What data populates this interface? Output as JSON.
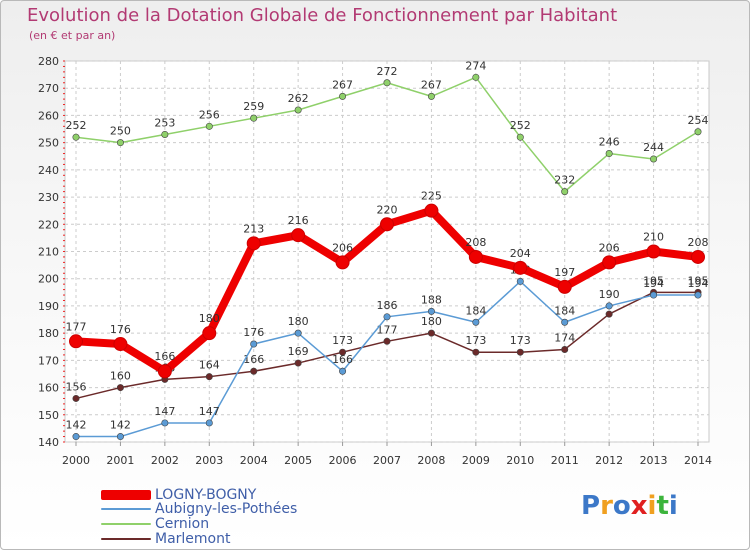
{
  "chart_data": {
    "type": "line",
    "title": "Evolution de la Dotation Globale de Fonctionnement par Habitant",
    "subtitle": "(en € et par an)",
    "xlabel": "",
    "ylabel": "",
    "ylim": [
      140,
      280
    ],
    "y_ticks": [
      140,
      150,
      160,
      170,
      180,
      190,
      200,
      210,
      220,
      230,
      240,
      250,
      260,
      270,
      280
    ],
    "categories": [
      "2000",
      "2001",
      "2002",
      "2003",
      "2004",
      "2005",
      "2006",
      "2007",
      "2008",
      "2009",
      "2010",
      "2011",
      "2012",
      "2013",
      "2014"
    ],
    "grid": true,
    "legend_position": "bottom-left",
    "series": [
      {
        "name": "Cernion",
        "color": "#8fd06a",
        "values": [
          252,
          250,
          253,
          256,
          259,
          262,
          267,
          272,
          267,
          274,
          252,
          232,
          246,
          244,
          254
        ],
        "labels": [
          "252",
          "250",
          "253",
          "256",
          "259",
          "262",
          "267",
          "272",
          "267",
          "274",
          "252",
          "232",
          "246",
          "244",
          "254"
        ]
      },
      {
        "name": "Marlemont",
        "color": "#6b2a2a",
        "values": [
          156,
          160,
          163,
          164,
          166,
          169,
          173,
          177,
          180,
          173,
          173,
          174,
          187,
          195,
          195
        ],
        "labels": [
          "156",
          "160",
          "163",
          "164",
          "166",
          "169",
          "173",
          "177",
          "180",
          "173",
          "173",
          "174",
          "",
          "195",
          "195"
        ]
      },
      {
        "name": "Aubigny-les-Pothées",
        "color": "#5b9bd5",
        "values": [
          142,
          142,
          147,
          147,
          176,
          180,
          166,
          186,
          188,
          184,
          199,
          184,
          190,
          194,
          194
        ],
        "labels": [
          "142",
          "142",
          "147",
          "147",
          "176",
          "180",
          "166",
          "186",
          "188",
          "184",
          "199",
          "184",
          "190",
          "194",
          "194"
        ]
      },
      {
        "name": "LOGNY-BOGNY",
        "color": "#ee0000",
        "values": [
          177,
          176,
          166,
          180,
          213,
          216,
          206,
          220,
          225,
          208,
          204,
          197,
          206,
          210,
          208
        ],
        "labels": [
          "177",
          "176",
          "166",
          "180",
          "213",
          "216",
          "206",
          "220",
          "225",
          "208",
          "204",
          "197",
          "206",
          "210",
          "208"
        ]
      }
    ]
  },
  "legend": [
    {
      "label": "LOGNY-BOGNY",
      "color": "#ee0000"
    },
    {
      "label": "Aubigny-les-Pothées",
      "color": "#5b9bd5"
    },
    {
      "label": "Cernion",
      "color": "#8fd06a"
    },
    {
      "label": "Marlemont",
      "color": "#6b2a2a"
    }
  ],
  "logo": {
    "letters": [
      "P",
      "r",
      "o",
      "x",
      "i",
      "t",
      "i"
    ],
    "colors": [
      "#3c78c8",
      "#f0a020",
      "#3c78c8",
      "#e02020",
      "#f0a020",
      "#3cb43c",
      "#3c78c8"
    ]
  },
  "colors": {
    "title": "#b23a73",
    "axis_labels": "#333333",
    "grid": "#cccccc",
    "axis_dots": "#ee2222"
  }
}
